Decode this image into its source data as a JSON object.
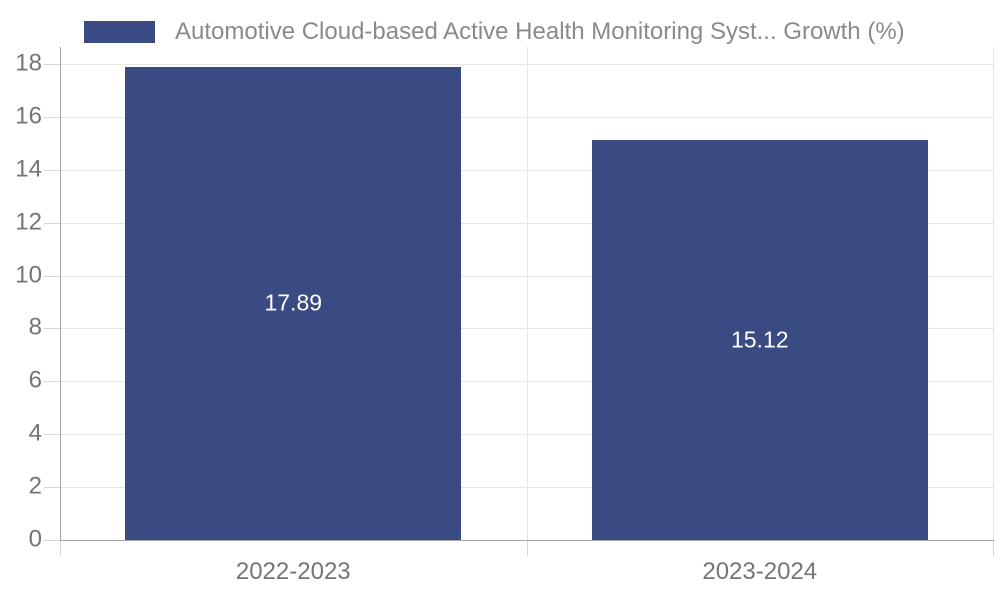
{
  "chart_data": {
    "type": "bar",
    "legend": {
      "label": "Automotive Cloud-based Active Health Monitoring Syst... Growth (%)",
      "position": "top-left"
    },
    "categories": [
      "2022-2023",
      "2023-2024"
    ],
    "series": [
      {
        "name": "Automotive Cloud-based Active Health Monitoring Syst... Growth (%)",
        "values": [
          17.89,
          15.12
        ],
        "value_labels": [
          "17.89",
          "15.12"
        ]
      }
    ],
    "ylim": [
      0,
      18
    ],
    "yticks": [
      0,
      2,
      4,
      6,
      8,
      10,
      12,
      14,
      16,
      18
    ],
    "grid": true,
    "bar_width_fraction": 0.72,
    "colors": {
      "bar": "#3a4a83",
      "value_label": "#ffffff",
      "axis_line": "#a6a6a6",
      "tick_line": "#d6d6d6",
      "grid_line": "#e6e6e6",
      "axis_text": "#757575",
      "legend_text": "#8a8a8a",
      "background": "#ffffff"
    }
  }
}
